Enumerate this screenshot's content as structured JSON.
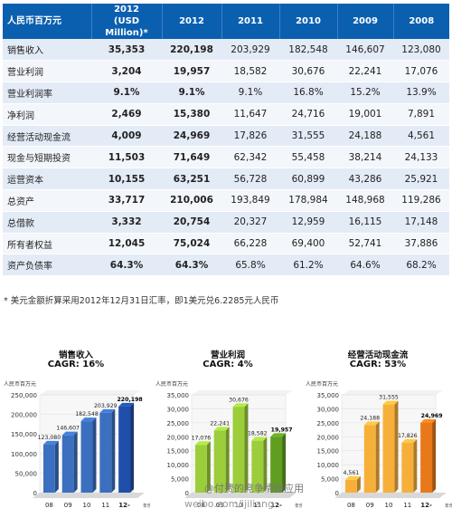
{
  "table": {
    "header": {
      "rowhead": "人民币百万元",
      "usd_line1": "2012",
      "usd_line2": "(USD Million)*",
      "years": [
        "2012",
        "2011",
        "2010",
        "2009",
        "2008"
      ]
    },
    "rows": [
      {
        "label": "销售收入",
        "usd": "35,353",
        "values": [
          "220,198",
          "203,929",
          "182,548",
          "146,607",
          "123,080"
        ]
      },
      {
        "label": "营业利润",
        "usd": "3,204",
        "values": [
          "19,957",
          "18,582",
          "30,676",
          "22,241",
          "17,076"
        ]
      },
      {
        "label": "营业利润率",
        "usd": "9.1%",
        "values": [
          "9.1%",
          "9.1%",
          "16.8%",
          "15.2%",
          "13.9%"
        ]
      },
      {
        "label": "净利润",
        "usd": "2,469",
        "values": [
          "15,380",
          "11,647",
          "24,716",
          "19,001",
          "7,891"
        ]
      },
      {
        "label": "经营活动现金流",
        "usd": "4,009",
        "values": [
          "24,969",
          "17,826",
          "31,555",
          "24,188",
          "4,561"
        ]
      },
      {
        "label": "现金与短期投资",
        "usd": "11,503",
        "values": [
          "71,649",
          "62,342",
          "55,458",
          "38,214",
          "24,133"
        ]
      },
      {
        "label": "运营资本",
        "usd": "10,155",
        "values": [
          "63,251",
          "56,728",
          "60,899",
          "43,286",
          "25,921"
        ]
      },
      {
        "label": "总资产",
        "usd": "33,717",
        "values": [
          "210,006",
          "193,849",
          "178,984",
          "148,968",
          "119,286"
        ]
      },
      {
        "label": "总借款",
        "usd": "3,332",
        "values": [
          "20,754",
          "20,327",
          "12,959",
          "16,115",
          "17,148"
        ]
      },
      {
        "label": "所有者权益",
        "usd": "12,045",
        "values": [
          "75,024",
          "66,228",
          "69,400",
          "52,741",
          "37,886"
        ]
      },
      {
        "label": "资产负债率",
        "usd": "64.3%",
        "values": [
          "64.3%",
          "65.8%",
          "61.2%",
          "64.6%",
          "68.2%"
        ]
      }
    ]
  },
  "footnote": "* 美元金额折算采用2012年12月31日汇率，即1美元兑6.2285元人民币",
  "watermark": {
    "line1": "@付费的竞争情报应用",
    "line2": "weibo.com/ijiliang"
  },
  "chart_data": [
    {
      "type": "bar",
      "title": "销售收入",
      "subtitle": "CAGR: 16%",
      "ylabel": "人民币百万元",
      "categories": [
        "08",
        "09",
        "10",
        "11",
        "12-"
      ],
      "x_suffix": "年份",
      "values": [
        123080,
        146607,
        182548,
        203929,
        220198
      ],
      "data_labels": [
        "123,080",
        "146,607",
        "182,548",
        "203,929",
        "220,198"
      ],
      "ylim": [
        0,
        250000
      ],
      "yticks": [
        "0",
        "50,000",
        "100,000",
        "150,000",
        "200,000",
        "250,000"
      ],
      "color": "#3b6fc0",
      "highlight_color": "#1f4fa8"
    },
    {
      "type": "bar",
      "title": "营业利润",
      "subtitle": "CAGR: 4%",
      "ylabel": "人民币百万元",
      "categories": [
        "08",
        "09",
        "10",
        "11",
        "12-"
      ],
      "x_suffix": "年份",
      "values": [
        17076,
        22241,
        30676,
        18582,
        19957
      ],
      "data_labels": [
        "17,076",
        "22,241",
        "30,676",
        "18,582",
        "19,957"
      ],
      "ylim": [
        0,
        35000
      ],
      "yticks": [
        "0",
        "5,000",
        "10,000",
        "15,000",
        "20,000",
        "25,000",
        "30,000",
        "35,000"
      ],
      "color": "#9ccd3a",
      "highlight_color": "#5f9e1e"
    },
    {
      "type": "bar",
      "title": "经营活动现金流",
      "subtitle": "CAGR: 53%",
      "ylabel": "人民币百万元",
      "categories": [
        "08",
        "09",
        "10",
        "11",
        "12-"
      ],
      "x_suffix": "年份",
      "values": [
        4561,
        24188,
        31555,
        17826,
        24969
      ],
      "data_labels": [
        "4,561",
        "24,188",
        "31,555",
        "17,826",
        "24,969"
      ],
      "ylim": [
        0,
        35000
      ],
      "yticks": [
        "0",
        "5,000",
        "10,000",
        "15,000",
        "20,000",
        "25,000",
        "30,000",
        "35,000"
      ],
      "color": "#f6b03a",
      "highlight_color": "#e8781a"
    }
  ]
}
